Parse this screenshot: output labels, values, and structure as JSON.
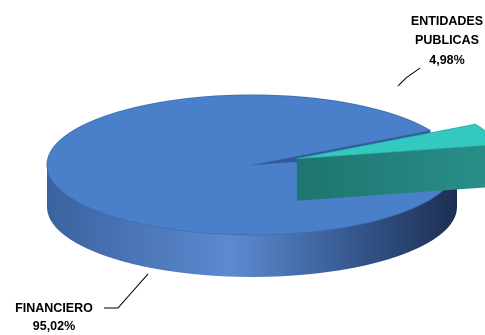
{
  "chart_data": {
    "type": "pie",
    "style": "3d-exploded",
    "title": "",
    "slices": [
      {
        "label": "FINANCIERO",
        "value": 95.02,
        "value_label": "95,02%",
        "color": "#4a7fc9"
      },
      {
        "label": "ENTIDADES PUBLICAS",
        "label_lines": [
          "ENTIDADES",
          "PUBLICAS"
        ],
        "value": 4.98,
        "value_label": "4,98%",
        "color": "#33c9c1"
      }
    ]
  }
}
